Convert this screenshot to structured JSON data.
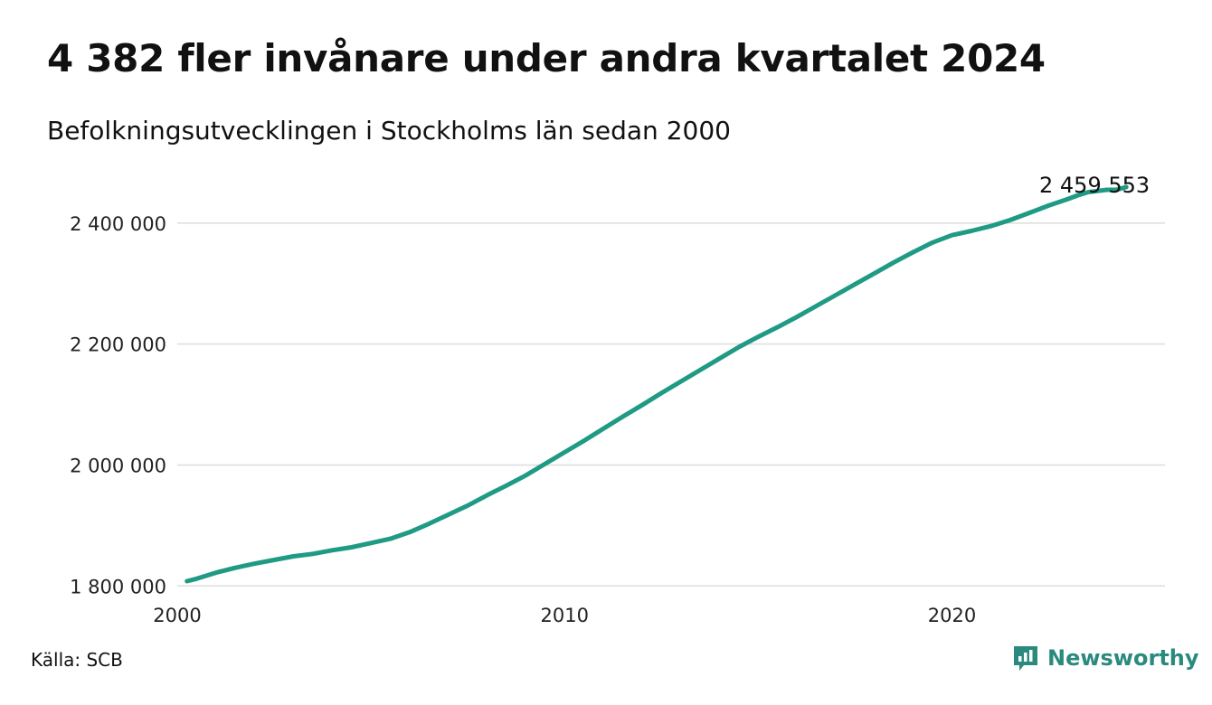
{
  "title": "4 382 fler invånare under andra kvartalet 2024",
  "subtitle": "Befolkningsutvecklingen i Stockholms län sedan 2000",
  "source": "Källa: SCB",
  "brand": {
    "name": "Newsworthy",
    "icon": "newsworthy-logo-icon",
    "color": "#2b8a7e"
  },
  "chart_data": {
    "type": "line",
    "title": "4 382 fler invånare under andra kvartalet 2024",
    "subtitle": "Befolkningsutvecklingen i Stockholms län sedan 2000",
    "xlabel": "",
    "ylabel": "",
    "xlim": [
      2000,
      2025.5
    ],
    "ylim": [
      1790000,
      2470000
    ],
    "x_ticks": [
      2000,
      2010,
      2020
    ],
    "x_tick_labels": [
      "2000",
      "2010",
      "2020"
    ],
    "y_ticks": [
      1800000,
      2000000,
      2200000,
      2400000
    ],
    "y_tick_labels": [
      "1 800 000",
      "2 000 000",
      "2 200 000",
      "2 400 000"
    ],
    "grid": "horizontal",
    "line_color": "#1f9a84",
    "end_label": "2 459 553",
    "series": [
      {
        "name": "",
        "x": [
          2000.25,
          2000.5,
          2001,
          2001.5,
          2002,
          2002.5,
          2003,
          2003.5,
          2004,
          2004.5,
          2005,
          2005.5,
          2006,
          2006.5,
          2007,
          2007.5,
          2008,
          2008.5,
          2009,
          2009.5,
          2010,
          2010.5,
          2011,
          2011.5,
          2012,
          2012.5,
          2013,
          2013.5,
          2014,
          2014.5,
          2015,
          2015.5,
          2016,
          2016.5,
          2017,
          2017.5,
          2018,
          2018.5,
          2019,
          2019.5,
          2020,
          2020.5,
          2021,
          2021.5,
          2022,
          2022.5,
          2023,
          2023.25,
          2023.5,
          2024,
          2024.25,
          2024.5
        ],
        "y": [
          1808000,
          1812000,
          1822000,
          1830000,
          1837000,
          1843000,
          1849000,
          1853000,
          1859000,
          1864000,
          1871000,
          1878000,
          1889000,
          1903000,
          1918000,
          1933000,
          1950000,
          1966000,
          1983000,
          2002000,
          2021000,
          2040000,
          2060000,
          2080000,
          2099000,
          2119000,
          2138000,
          2157000,
          2176000,
          2195000,
          2212000,
          2228000,
          2245000,
          2263000,
          2281000,
          2299000,
          2317000,
          2335000,
          2352000,
          2368000,
          2380000,
          2387000,
          2395000,
          2405000,
          2417000,
          2429000,
          2440000,
          2446000,
          2451000,
          2455000,
          2455171,
          2459553
        ]
      }
    ]
  }
}
